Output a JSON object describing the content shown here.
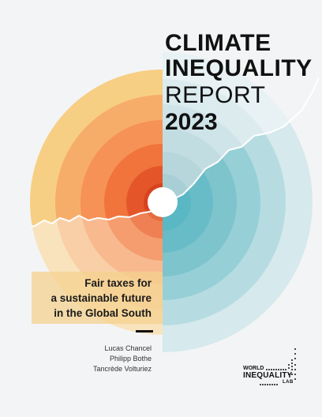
{
  "title": {
    "line1": "CLIMATE",
    "line2": "INEQUALITY",
    "line3": "REPORT",
    "line4": "2023"
  },
  "subtitle": {
    "line1": "Fair taxes for",
    "line2": "a sustainable future",
    "line3": "in the Global South"
  },
  "authors": [
    "Lucas Chancel",
    "Philipp Bothe",
    "Tancrède Volturiez"
  ],
  "publisher": {
    "line1": "WORLD",
    "line2": "INEQUALITY",
    "line3": "LAB"
  },
  "colors": {
    "background": "#f3f4f5",
    "warm_outer": "#f7cf84",
    "warm_inner": "#d8431f",
    "cool_outer": "#dcebee",
    "cool_inner": "#5ab7c4",
    "subtitle_highlight": "#f4d28f",
    "text": "#111111"
  }
}
